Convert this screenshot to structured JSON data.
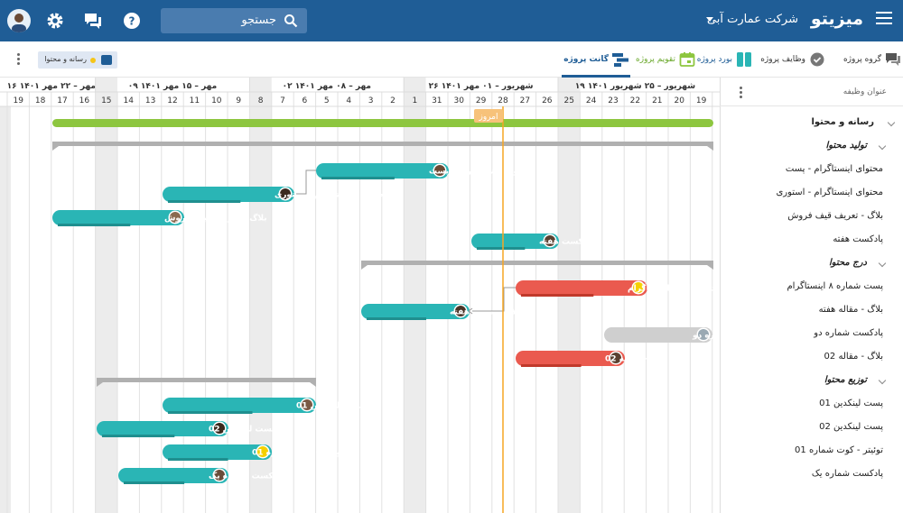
{
  "header": {
    "brand": "میزیتو",
    "company": "شرکت عمارت آبی",
    "search_placeholder": "جستجو"
  },
  "tabs": [
    {
      "label": "گروه پروژه",
      "icon": "chat-group-icon"
    },
    {
      "label": "وظایف پروژه",
      "icon": "check-circle-icon"
    },
    {
      "label": "بورد پروژه",
      "icon": "board-icon"
    },
    {
      "label": "تقویم پروژه",
      "icon": "calendar-icon"
    },
    {
      "label": "گانت پروژه",
      "icon": "gantt-icon"
    }
  ],
  "filter_chip": {
    "label": "رسانه و محتوا"
  },
  "sidebar": {
    "header": "عنوان وظیفه",
    "rows": [
      {
        "label": "رسانه و محتوا",
        "kind": "group"
      },
      {
        "label": "تولید محتوا",
        "kind": "sub"
      },
      {
        "label": "محتوای اینستاگرام - پست",
        "kind": "item"
      },
      {
        "label": "محتوای اینستاگرام - استوری",
        "kind": "item"
      },
      {
        "label": "بلاگ - تعریف قیف فروش",
        "kind": "item"
      },
      {
        "label": "پادکست هفته",
        "kind": "item"
      },
      {
        "label": "درج محتوا",
        "kind": "sub"
      },
      {
        "label": "پست شماره ۸ اینستاگرام",
        "kind": "item"
      },
      {
        "label": "بلاگ - مقاله هفته",
        "kind": "item"
      },
      {
        "label": "پادکست شماره دو",
        "kind": "item"
      },
      {
        "label": "بلاگ - مقاله 02",
        "kind": "item"
      },
      {
        "label": "توزیع محتوا",
        "kind": "sub"
      },
      {
        "label": "پست لینکدین 01",
        "kind": "item"
      },
      {
        "label": "پست لینکدین 02",
        "kind": "item"
      },
      {
        "label": "توئیتر - کوت شماره 01",
        "kind": "item"
      },
      {
        "label": "پادکست شماره یک",
        "kind": "item"
      }
    ]
  },
  "timeline": {
    "weeks": [
      "۱۶ مهر – ۲۲ مهر ۱۴۰۱",
      "۰۹ مهر – ۱۵ مهر ۱۴۰۱",
      "۰۲ مهر – ۰۸ مهر ۱۴۰۱",
      "۲۶ شهریور – ۰۱ مهر ۱۴۰۱",
      "۱۹ شهریور – ۲۵ شهریور ۱۴۰۱"
    ],
    "days": [
      "19",
      "18",
      "17",
      "16",
      "15",
      "14",
      "13",
      "12",
      "11",
      "10",
      "9",
      "8",
      "7",
      "6",
      "5",
      "4",
      "3",
      "2",
      "1",
      "31",
      "30",
      "29",
      "28",
      "27",
      "26",
      "25",
      "24",
      "23",
      "22",
      "21",
      "20",
      "19"
    ],
    "today_label": "امروز"
  },
  "bars": [
    {
      "label": "محتوای اینستاگرام - پست",
      "color": "#2ab5b5"
    },
    {
      "label": "محتوای اینستاگرام - استوری",
      "color": "#2ab5b5"
    },
    {
      "label": "بلاگ - تعریف قیف فروش",
      "color": "#2ab5b5"
    },
    {
      "label": "پادکست هفته",
      "color": "#2ab5b5"
    },
    {
      "label": "پست شماره ۸ اینستاگرام",
      "color": "#ea5a4f"
    },
    {
      "label": "بلاگ - مقاله هفته",
      "color": "#2ab5b5"
    },
    {
      "label": "پادکست شماره دو",
      "color": "#cfcfcf"
    },
    {
      "label": "بلاگ - مقاله 02",
      "color": "#ea5a4f"
    },
    {
      "label": "پست لینکدین 01",
      "color": "#2ab5b5"
    },
    {
      "label": "پست لینکدین 02",
      "color": "#2ab5b5"
    },
    {
      "label": "توئیتر - کوت شماره 01",
      "color": "#2ab5b5"
    },
    {
      "label": "پادکست شماره یک",
      "color": "#2ab5b5"
    }
  ],
  "colors": {
    "primary": "#1f5d96",
    "teal": "#2ab5b5",
    "red": "#ea5a4f",
    "green_summary": "#8dc63f",
    "gray_summary": "#b0b0b0",
    "today": "#f5a623"
  }
}
